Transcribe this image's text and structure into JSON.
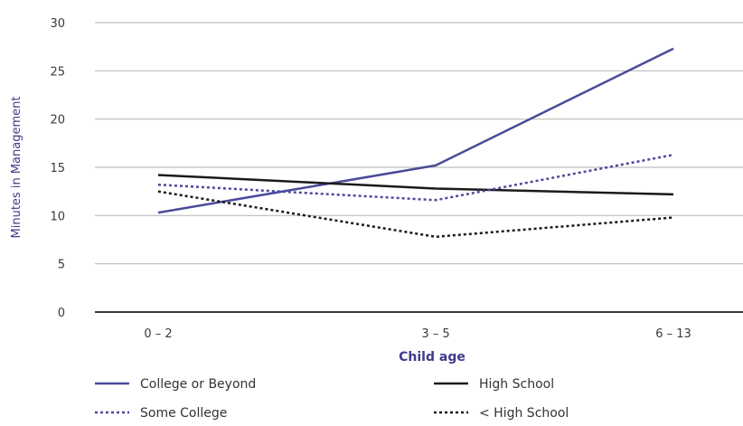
{
  "chart_data": {
    "type": "line",
    "xlabel": "Child age",
    "ylabel": "Minutes in Management",
    "categories": [
      "0 – 2",
      "3 – 5",
      "6 – 13"
    ],
    "ylim": [
      0,
      30
    ],
    "yticks": [
      0,
      5,
      10,
      15,
      20,
      25,
      30
    ],
    "grid": "horizontal",
    "legend_position": "bottom",
    "series": [
      {
        "name": "College or Beyond",
        "values": [
          10.3,
          15.2,
          27.3
        ],
        "color": "#4b4a9a",
        "style": "solid"
      },
      {
        "name": "High School",
        "values": [
          14.2,
          12.8,
          12.2
        ],
        "color": "#1a1a1a",
        "style": "solid"
      },
      {
        "name": "Some College",
        "values": [
          13.2,
          11.6,
          16.3
        ],
        "color": "#4b4a9a",
        "style": "dotted"
      },
      {
        "name": "< High School",
        "values": [
          12.5,
          7.8,
          9.8
        ],
        "color": "#1a1a1a",
        "style": "dotted"
      }
    ]
  }
}
